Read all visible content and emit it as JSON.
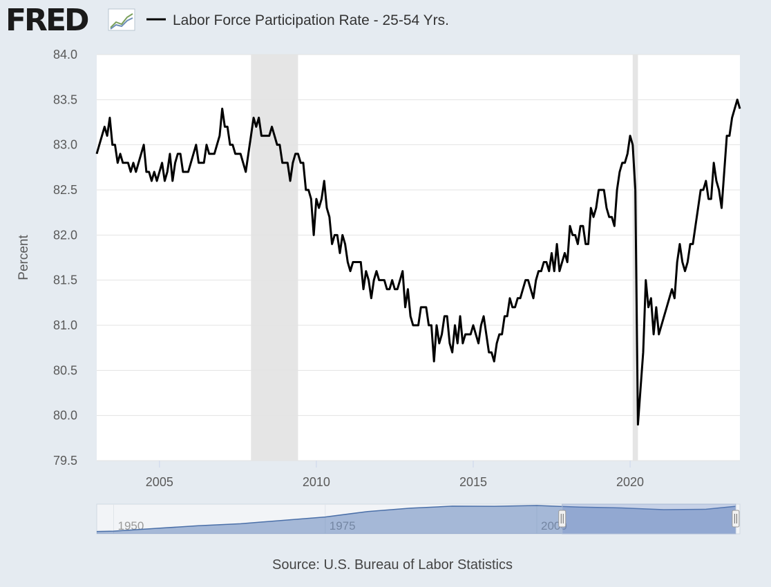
{
  "logo": "FRED",
  "chart_data": {
    "type": "line",
    "y_label": "Percent",
    "source": "Source: U.S. Bureau of Labor Statistics",
    "xlim": [
      2003,
      2023.5
    ],
    "xticks": [
      2005,
      2010,
      2015,
      2020
    ],
    "ylim": [
      79.5,
      84
    ],
    "yticks": [
      {
        "value": 79.5,
        "label": "79.5"
      },
      {
        "value": 80,
        "label": "80.0"
      },
      {
        "value": 80.5,
        "label": "80.5"
      },
      {
        "value": 81,
        "label": "81.0"
      },
      {
        "value": 81.5,
        "label": "81.5"
      },
      {
        "value": 82,
        "label": "82.0"
      },
      {
        "value": 82.5,
        "label": "82.5"
      },
      {
        "value": 83,
        "label": "83.0"
      },
      {
        "value": 83.5,
        "label": "83.5"
      },
      {
        "value": 84,
        "label": "84.0"
      }
    ],
    "grid": true,
    "recessions": [
      [
        2007.917,
        2009.417
      ],
      [
        2020.083,
        2020.25
      ]
    ],
    "x": [
      2003,
      2003.083,
      2003.167,
      2003.25,
      2003.333,
      2003.417,
      2003.5,
      2003.583,
      2003.667,
      2003.75,
      2003.833,
      2003.917,
      2004,
      2004.083,
      2004.167,
      2004.25,
      2004.333,
      2004.417,
      2004.5,
      2004.583,
      2004.667,
      2004.75,
      2004.833,
      2004.917,
      2005,
      2005.083,
      2005.167,
      2005.25,
      2005.333,
      2005.417,
      2005.5,
      2005.583,
      2005.667,
      2005.75,
      2005.833,
      2005.917,
      2006,
      2006.083,
      2006.167,
      2006.25,
      2006.333,
      2006.417,
      2006.5,
      2006.583,
      2006.667,
      2006.75,
      2006.833,
      2006.917,
      2007,
      2007.083,
      2007.167,
      2007.25,
      2007.333,
      2007.417,
      2007.5,
      2007.583,
      2007.667,
      2007.75,
      2007.833,
      2007.917,
      2008,
      2008.083,
      2008.167,
      2008.25,
      2008.333,
      2008.417,
      2008.5,
      2008.583,
      2008.667,
      2008.75,
      2008.833,
      2008.917,
      2009,
      2009.083,
      2009.167,
      2009.25,
      2009.333,
      2009.417,
      2009.5,
      2009.583,
      2009.667,
      2009.75,
      2009.833,
      2009.917,
      2010,
      2010.083,
      2010.167,
      2010.25,
      2010.333,
      2010.417,
      2010.5,
      2010.583,
      2010.667,
      2010.75,
      2010.833,
      2010.917,
      2011,
      2011.083,
      2011.167,
      2011.25,
      2011.333,
      2011.417,
      2011.5,
      2011.583,
      2011.667,
      2011.75,
      2011.833,
      2011.917,
      2012,
      2012.083,
      2012.167,
      2012.25,
      2012.333,
      2012.417,
      2012.5,
      2012.583,
      2012.667,
      2012.75,
      2012.833,
      2012.917,
      2013,
      2013.083,
      2013.167,
      2013.25,
      2013.333,
      2013.417,
      2013.5,
      2013.583,
      2013.667,
      2013.75,
      2013.833,
      2013.917,
      2014,
      2014.083,
      2014.167,
      2014.25,
      2014.333,
      2014.417,
      2014.5,
      2014.583,
      2014.667,
      2014.75,
      2014.833,
      2014.917,
      2015,
      2015.083,
      2015.167,
      2015.25,
      2015.333,
      2015.417,
      2015.5,
      2015.583,
      2015.667,
      2015.75,
      2015.833,
      2015.917,
      2016,
      2016.083,
      2016.167,
      2016.25,
      2016.333,
      2016.417,
      2016.5,
      2016.583,
      2016.667,
      2016.75,
      2016.833,
      2016.917,
      2017,
      2017.083,
      2017.167,
      2017.25,
      2017.333,
      2017.417,
      2017.5,
      2017.583,
      2017.667,
      2017.75,
      2017.833,
      2017.917,
      2018,
      2018.083,
      2018.167,
      2018.25,
      2018.333,
      2018.417,
      2018.5,
      2018.583,
      2018.667,
      2018.75,
      2018.833,
      2018.917,
      2019,
      2019.083,
      2019.167,
      2019.25,
      2019.333,
      2019.417,
      2019.5,
      2019.583,
      2019.667,
      2019.75,
      2019.833,
      2019.917,
      2020,
      2020.083,
      2020.167,
      2020.25,
      2020.333,
      2020.417,
      2020.5,
      2020.583,
      2020.667,
      2020.75,
      2020.833,
      2020.917,
      2021,
      2021.083,
      2021.167,
      2021.25,
      2021.333,
      2021.417,
      2021.5,
      2021.583,
      2021.667,
      2021.75,
      2021.833,
      2021.917,
      2022,
      2022.083,
      2022.167,
      2022.25,
      2022.333,
      2022.417,
      2022.5,
      2022.583,
      2022.667,
      2022.75,
      2022.833,
      2022.917,
      2023,
      2023.083,
      2023.167,
      2023.25,
      2023.333,
      2023.417,
      2023.5
    ],
    "series": [
      {
        "name": "Labor Force Participation Rate - 25-54 Yrs.",
        "color": "#000000",
        "values": [
          82.9,
          83.0,
          83.1,
          83.2,
          83.1,
          83.3,
          83.0,
          83.0,
          82.8,
          82.9,
          82.8,
          82.8,
          82.8,
          82.7,
          82.8,
          82.7,
          82.8,
          82.9,
          83.0,
          82.7,
          82.7,
          82.6,
          82.7,
          82.6,
          82.7,
          82.8,
          82.6,
          82.7,
          82.9,
          82.6,
          82.8,
          82.9,
          82.9,
          82.7,
          82.7,
          82.7,
          82.8,
          82.9,
          83.0,
          82.8,
          82.8,
          82.8,
          83.0,
          82.9,
          82.9,
          82.9,
          83.0,
          83.1,
          83.4,
          83.2,
          83.2,
          83.0,
          83.0,
          82.9,
          82.9,
          82.9,
          82.8,
          82.7,
          82.9,
          83.1,
          83.3,
          83.2,
          83.3,
          83.1,
          83.1,
          83.1,
          83.1,
          83.2,
          83.1,
          83.0,
          83.0,
          82.8,
          82.8,
          82.8,
          82.6,
          82.8,
          82.9,
          82.9,
          82.8,
          82.8,
          82.5,
          82.5,
          82.4,
          82.0,
          82.4,
          82.3,
          82.4,
          82.6,
          82.3,
          82.2,
          81.9,
          82.0,
          82.0,
          81.8,
          82.0,
          81.9,
          81.7,
          81.6,
          81.7,
          81.7,
          81.7,
          81.7,
          81.4,
          81.6,
          81.5,
          81.3,
          81.5,
          81.6,
          81.5,
          81.5,
          81.5,
          81.4,
          81.4,
          81.5,
          81.4,
          81.4,
          81.5,
          81.6,
          81.2,
          81.4,
          81.1,
          81.0,
          81.0,
          81.0,
          81.2,
          81.2,
          81.2,
          81.0,
          81.0,
          80.6,
          81.0,
          80.8,
          80.9,
          81.1,
          81.1,
          80.8,
          80.7,
          81.0,
          80.8,
          81.1,
          80.8,
          80.9,
          80.9,
          80.9,
          81.0,
          80.9,
          80.8,
          81.0,
          81.1,
          80.9,
          80.7,
          80.7,
          80.6,
          80.8,
          80.9,
          80.9,
          81.1,
          81.1,
          81.3,
          81.2,
          81.2,
          81.3,
          81.3,
          81.4,
          81.5,
          81.5,
          81.4,
          81.3,
          81.5,
          81.6,
          81.6,
          81.7,
          81.7,
          81.6,
          81.8,
          81.6,
          81.9,
          81.6,
          81.7,
          81.8,
          81.7,
          82.1,
          82.0,
          82.0,
          81.9,
          82.1,
          82.1,
          81.9,
          81.9,
          82.3,
          82.2,
          82.3,
          82.5,
          82.5,
          82.5,
          82.3,
          82.2,
          82.2,
          82.1,
          82.5,
          82.7,
          82.8,
          82.8,
          82.9,
          83.1,
          83.0,
          82.5,
          79.9,
          80.3,
          80.7,
          81.5,
          81.2,
          81.3,
          80.9,
          81.2,
          80.9,
          81.0,
          81.1,
          81.2,
          81.3,
          81.4,
          81.3,
          81.7,
          81.9,
          81.7,
          81.6,
          81.7,
          81.9,
          81.9,
          82.1,
          82.3,
          82.5,
          82.5,
          82.6,
          82.4,
          82.4,
          82.8,
          82.6,
          82.5,
          82.3,
          82.7,
          83.1,
          83.1,
          83.3,
          83.4,
          83.5,
          83.4
        ]
      }
    ],
    "navigator": {
      "xlim": [
        1948,
        2024
      ],
      "ylim": [
        63,
        85
      ],
      "xticks": [
        1950,
        1975,
        2000
      ],
      "selection": [
        2003,
        2023.5
      ],
      "x": [
        1948,
        1950,
        1955,
        1960,
        1965,
        1970,
        1975,
        1980,
        1985,
        1990,
        1995,
        2000,
        2005,
        2010,
        2015,
        2020,
        2023.5
      ],
      "values": [
        64.7,
        65.0,
        67.0,
        69.0,
        70.5,
        73.0,
        75.5,
        79.5,
        82.0,
        83.5,
        83.4,
        84.0,
        82.8,
        82.2,
        80.9,
        81.2,
        83.4
      ]
    }
  }
}
